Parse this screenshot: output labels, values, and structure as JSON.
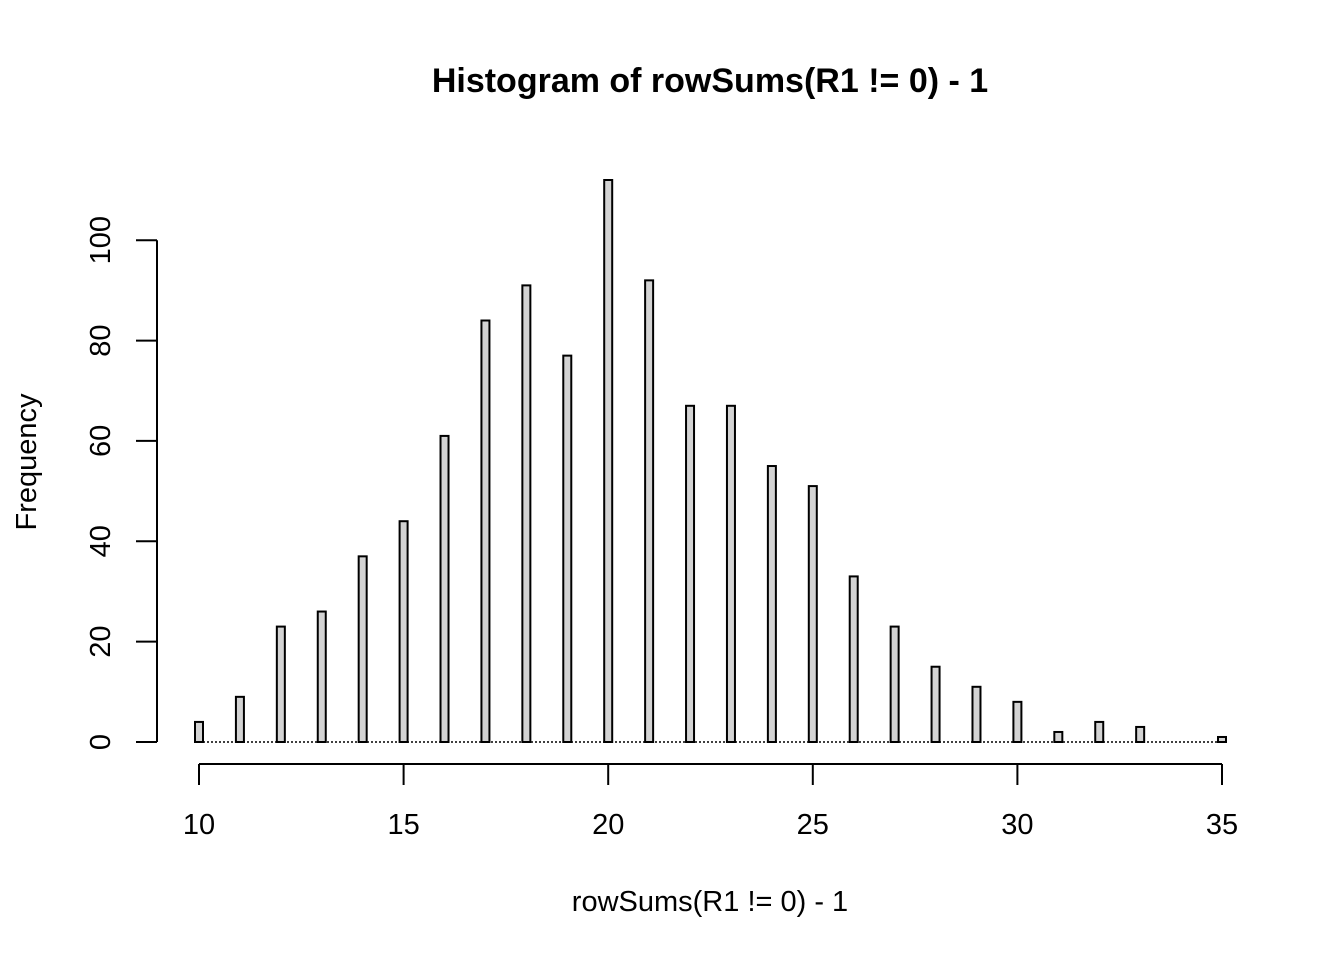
{
  "chart_data": {
    "type": "bar",
    "title": "Histogram of rowSums(R1 != 0) - 1",
    "xlabel": "rowSums(R1 != 0) - 1",
    "ylabel": "Frequency",
    "x": [
      10,
      11,
      12,
      13,
      14,
      15,
      16,
      17,
      18,
      19,
      20,
      21,
      22,
      23,
      24,
      25,
      26,
      27,
      28,
      29,
      30,
      31,
      32,
      33,
      34,
      35
    ],
    "values": [
      4,
      9,
      23,
      26,
      37,
      44,
      61,
      84,
      91,
      77,
      112,
      92,
      67,
      67,
      55,
      51,
      33,
      23,
      15,
      11,
      8,
      2,
      4,
      3,
      0,
      1
    ],
    "xlim": [
      10,
      35
    ],
    "ylim": [
      0,
      112
    ],
    "x_ticks": [
      "10",
      "15",
      "20",
      "25",
      "30",
      "35"
    ],
    "y_ticks": [
      "0",
      "20",
      "40",
      "60",
      "80",
      "100"
    ],
    "bar_color": "#d3d3d3",
    "grid": false,
    "legend": "none"
  }
}
